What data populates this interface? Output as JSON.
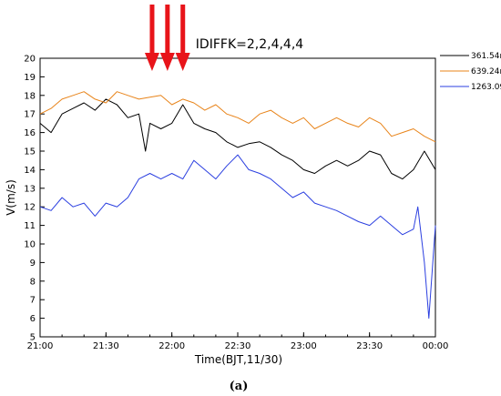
{
  "chart_data": {
    "type": "line",
    "title": "IDIFFK=2,2,4,4,4",
    "xlabel": "Time(BJT,11/30)",
    "ylabel": "V(m/s)",
    "caption": "(a)",
    "x_ticks": [
      "21:00",
      "21:30",
      "22:00",
      "22:30",
      "23:00",
      "23:30",
      "00:00"
    ],
    "xlim": [
      "21:00",
      "00:00"
    ],
    "ylim": [
      5,
      20
    ],
    "y_ticks": [
      5,
      6,
      7,
      8,
      9,
      10,
      11,
      12,
      13,
      14,
      15,
      16,
      17,
      18,
      19,
      20
    ],
    "grid": false,
    "legend_position": "top-right-outside",
    "arrows_at": [
      "21:51",
      "21:58",
      "22:05"
    ],
    "series": [
      {
        "name": "361.54m",
        "color": "#000000",
        "x": [
          "21:00",
          "21:05",
          "21:10",
          "21:15",
          "21:20",
          "21:25",
          "21:30",
          "21:35",
          "21:40",
          "21:45",
          "21:48",
          "21:50",
          "21:55",
          "22:00",
          "22:05",
          "22:10",
          "22:15",
          "22:20",
          "22:25",
          "22:30",
          "22:35",
          "22:40",
          "22:45",
          "22:50",
          "22:55",
          "23:00",
          "23:05",
          "23:10",
          "23:15",
          "23:20",
          "23:25",
          "23:30",
          "23:35",
          "23:40",
          "23:45",
          "23:50",
          "23:55",
          "00:00"
        ],
        "y": [
          16.5,
          16.0,
          17.0,
          17.3,
          17.6,
          17.2,
          17.8,
          17.5,
          16.8,
          17.0,
          15.0,
          16.5,
          16.2,
          16.5,
          17.5,
          16.5,
          16.2,
          16.0,
          15.5,
          15.2,
          15.4,
          15.5,
          15.2,
          14.8,
          14.5,
          14.0,
          13.8,
          14.2,
          14.5,
          14.2,
          14.5,
          15.0,
          14.8,
          13.8,
          13.5,
          14.0,
          15.0,
          14.0
        ]
      },
      {
        "name": "639.24m",
        "color": "#e8841a",
        "x": [
          "21:00",
          "21:05",
          "21:10",
          "21:15",
          "21:20",
          "21:25",
          "21:30",
          "21:35",
          "21:40",
          "21:45",
          "21:50",
          "21:55",
          "22:00",
          "22:05",
          "22:10",
          "22:15",
          "22:20",
          "22:25",
          "22:30",
          "22:35",
          "22:40",
          "22:45",
          "22:50",
          "22:55",
          "23:00",
          "23:05",
          "23:10",
          "23:15",
          "23:20",
          "23:25",
          "23:30",
          "23:35",
          "23:40",
          "23:45",
          "23:50",
          "23:55",
          "00:00"
        ],
        "y": [
          17.0,
          17.3,
          17.8,
          18.0,
          18.2,
          17.8,
          17.6,
          18.2,
          18.0,
          17.8,
          17.9,
          18.0,
          17.5,
          17.8,
          17.6,
          17.2,
          17.5,
          17.0,
          16.8,
          16.5,
          17.0,
          17.2,
          16.8,
          16.5,
          16.8,
          16.2,
          16.5,
          16.8,
          16.5,
          16.3,
          16.8,
          16.5,
          15.8,
          16.0,
          16.2,
          15.8,
          15.5
        ]
      },
      {
        "name": "1263.09m",
        "color": "#2b3fe0",
        "x": [
          "21:00",
          "21:05",
          "21:10",
          "21:15",
          "21:20",
          "21:25",
          "21:30",
          "21:35",
          "21:40",
          "21:45",
          "21:50",
          "21:55",
          "22:00",
          "22:05",
          "22:10",
          "22:15",
          "22:20",
          "22:25",
          "22:30",
          "22:35",
          "22:40",
          "22:45",
          "22:50",
          "22:55",
          "23:00",
          "23:05",
          "23:10",
          "23:15",
          "23:20",
          "23:25",
          "23:30",
          "23:35",
          "23:40",
          "23:45",
          "23:50",
          "23:52",
          "23:55",
          "23:57",
          "00:00"
        ],
        "y": [
          12.0,
          11.8,
          12.5,
          12.0,
          12.2,
          11.5,
          12.2,
          12.0,
          12.5,
          13.5,
          13.8,
          13.5,
          13.8,
          13.5,
          14.5,
          14.0,
          13.5,
          14.2,
          14.8,
          14.0,
          13.8,
          13.5,
          13.0,
          12.5,
          12.8,
          12.2,
          12.0,
          11.8,
          11.5,
          11.2,
          11.0,
          11.5,
          11.0,
          10.5,
          10.8,
          12.0,
          9.0,
          6.0,
          11.0
        ]
      }
    ]
  }
}
